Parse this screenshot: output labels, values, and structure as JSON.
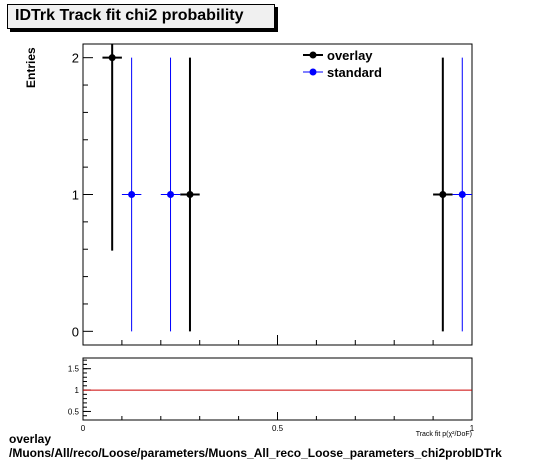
{
  "chart_data": {
    "type": "scatter",
    "title": "IDTrk Track fit chi2 probability",
    "ylabel": "Entries",
    "xlabel": "Track fit p(χ²/DoF)",
    "xlim": [
      0,
      1
    ],
    "ylim": [
      -0.1,
      2.1
    ],
    "yticks": [
      "0",
      "1",
      "2"
    ],
    "legend_position": "top-right",
    "series": [
      {
        "name": "overlay",
        "color": "#000000",
        "points": [
          {
            "x": 0.075,
            "y": 2,
            "xerr": 0.025,
            "ylo": 0.59,
            "yhi": 2.1
          },
          {
            "x": 0.275,
            "y": 1,
            "xerr": 0.025,
            "ylo": 0,
            "yhi": 2
          },
          {
            "x": 0.925,
            "y": 1,
            "xerr": 0.025,
            "ylo": 0,
            "yhi": 2
          }
        ]
      },
      {
        "name": "standard",
        "color": "#0000ff",
        "points": [
          {
            "x": 0.125,
            "y": 1,
            "xerr": 0.025,
            "ylo": 0,
            "yhi": 2
          },
          {
            "x": 0.225,
            "y": 1,
            "xerr": 0.025,
            "ylo": 0,
            "yhi": 2
          },
          {
            "x": 0.975,
            "y": 1,
            "xerr": 0.025,
            "ylo": 0,
            "yhi": 2
          }
        ]
      }
    ],
    "ratio": {
      "ylim": [
        0.3,
        1.75
      ],
      "yticks": [
        "0.5",
        "1",
        "1.5"
      ],
      "xticks": [
        "0",
        "0.5",
        "1"
      ],
      "reference_line": 1,
      "reference_color": "#cc0000"
    }
  },
  "footer": {
    "line1": "overlay",
    "line2": "/Muons/All/reco/Loose/parameters/Muons_All_reco_Loose_parameters_chi2probIDTrk"
  }
}
